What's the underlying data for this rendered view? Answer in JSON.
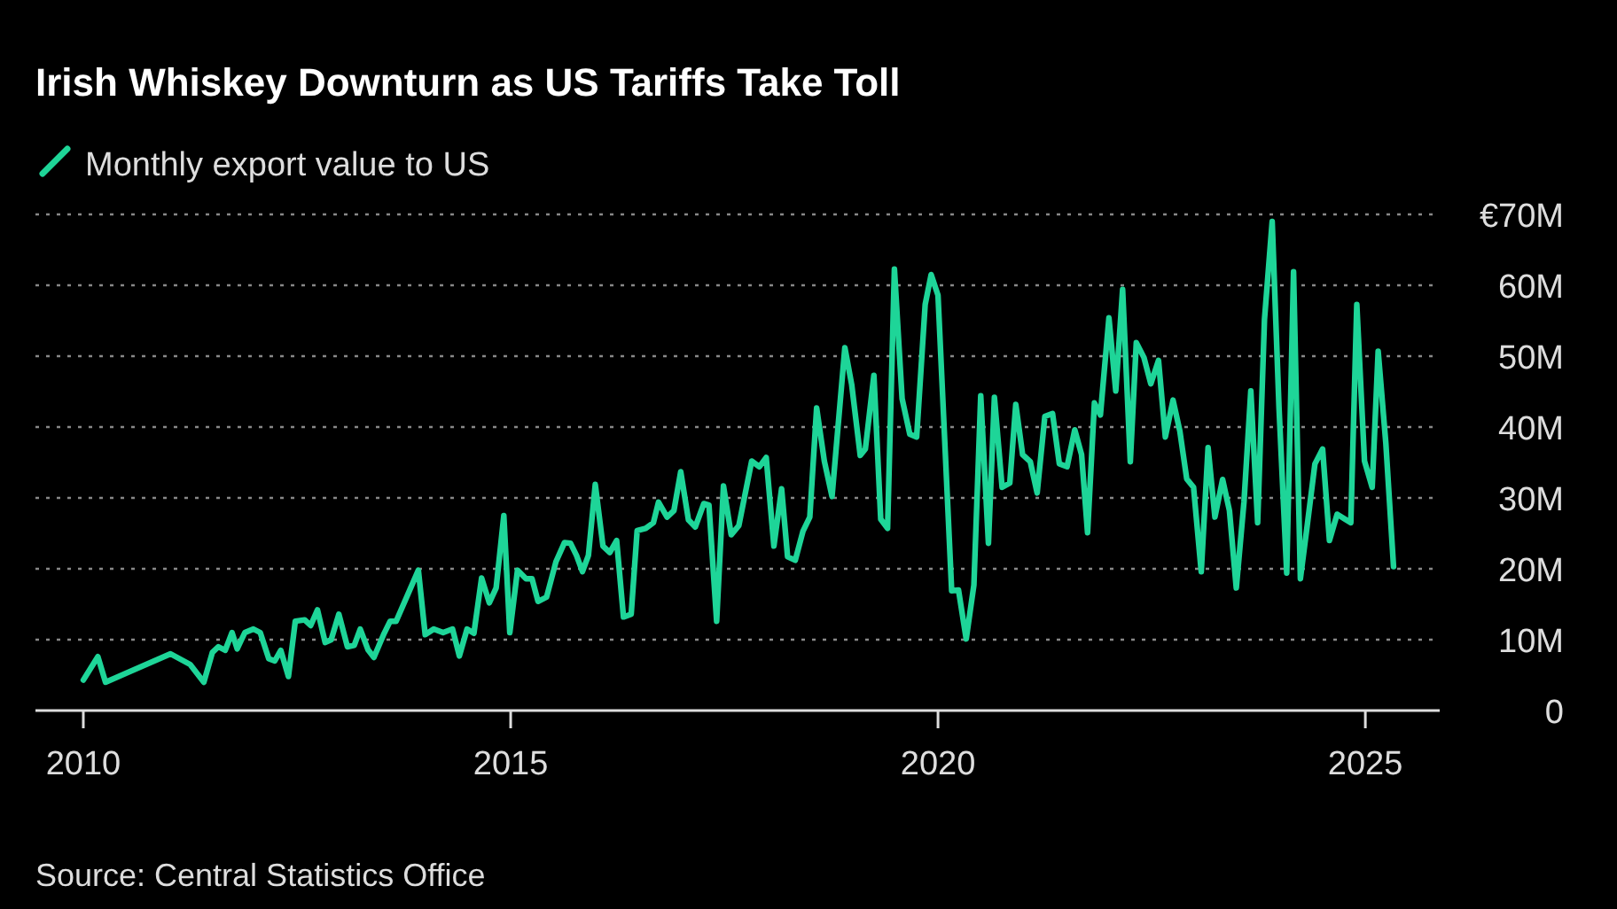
{
  "chart_data": {
    "type": "line",
    "title": "Irish Whiskey Downturn as US Tariffs Take Toll",
    "series": [
      {
        "name": "Monthly export value to US",
        "color": "#1ed598",
        "x": [
          2010.0,
          2010.17,
          2010.26,
          2011.02,
          2011.25,
          2011.41,
          2011.51,
          2011.58,
          2011.66,
          2011.74,
          2011.8,
          2011.89,
          2011.99,
          2012.07,
          2012.17,
          2012.24,
          2012.31,
          2012.4,
          2012.48,
          2012.59,
          2012.66,
          2012.74,
          2012.83,
          2012.9,
          2012.99,
          2013.09,
          2013.17,
          2013.24,
          2013.33,
          2013.4,
          2013.52,
          2013.59,
          2013.66,
          2013.92,
          2014.0,
          2014.1,
          2014.21,
          2014.32,
          2014.4,
          2014.49,
          2014.57,
          2014.66,
          2014.75,
          2014.83,
          2014.92,
          2014.99,
          2015.08,
          2015.18,
          2015.25,
          2015.32,
          2015.42,
          2015.53,
          2015.63,
          2015.7,
          2015.77,
          2015.84,
          2015.91,
          2015.99,
          2016.08,
          2016.16,
          2016.24,
          2016.32,
          2016.41,
          2016.48,
          2016.58,
          2016.67,
          2016.73,
          2016.83,
          2016.91,
          2016.99,
          2017.08,
          2017.16,
          2017.26,
          2017.32,
          2017.41,
          2017.49,
          2017.58,
          2017.67,
          2017.82,
          2017.91,
          2017.99,
          2018.08,
          2018.17,
          2018.24,
          2018.33,
          2018.42,
          2018.5,
          2018.58,
          2018.67,
          2018.76,
          2018.91,
          2018.99,
          2019.09,
          2019.15,
          2019.25,
          2019.33,
          2019.41,
          2019.49,
          2019.58,
          2019.67,
          2019.75,
          2019.85,
          2019.92,
          2020.0,
          2020.16,
          2020.24,
          2020.33,
          2020.42,
          2020.5,
          2020.59,
          2020.66,
          2020.75,
          2020.84,
          2020.91,
          2020.99,
          2021.08,
          2021.16,
          2021.25,
          2021.34,
          2021.42,
          2021.51,
          2021.6,
          2021.68,
          2021.75,
          2021.83,
          2021.9,
          2022.0,
          2022.08,
          2022.16,
          2022.25,
          2022.32,
          2022.41,
          2022.49,
          2022.58,
          2022.66,
          2022.75,
          2022.83,
          2022.91,
          2022.99,
          2023.08,
          2023.16,
          2023.24,
          2023.33,
          2023.41,
          2023.49,
          2023.58,
          2023.66,
          2023.74,
          2023.82,
          2023.91,
          2023.99,
          2024.08,
          2024.16,
          2024.24,
          2024.32,
          2024.41,
          2024.5,
          2024.58,
          2024.67,
          2024.75,
          2024.83,
          2024.9,
          2024.99,
          2025.08,
          2025.15,
          2025.24,
          2025.33
        ],
        "values": [
          4.3,
          7.6,
          4,
          8,
          6.5,
          4,
          8.2,
          9,
          8.5,
          11,
          8.7,
          11,
          11.5,
          11,
          7.3,
          7,
          8.5,
          4.8,
          12.6,
          12.8,
          12,
          14.2,
          9.6,
          10,
          13.6,
          9,
          9.2,
          11.5,
          8.6,
          7.5,
          10.9,
          12.6,
          12.6,
          19.8,
          10.7,
          11.5,
          11,
          11.5,
          7.7,
          11.5,
          10.9,
          18.7,
          15.2,
          17.3,
          27.5,
          11,
          19.8,
          18.6,
          18.6,
          15.4,
          16,
          21,
          23.7,
          23.6,
          21.9,
          19.6,
          21.9,
          31.9,
          23.2,
          22.3,
          24,
          13.2,
          13.6,
          25.4,
          25.7,
          26.5,
          29.4,
          27.3,
          28.2,
          33.7,
          26.9,
          25.9,
          29.2,
          29,
          12.6,
          31.7,
          24.8,
          26.1,
          35.2,
          34.4,
          35.7,
          23.2,
          31.3,
          21.7,
          21.2,
          25.3,
          27.3,
          42.7,
          35.2,
          30.2,
          51.2,
          46,
          36,
          36.9,
          47.3,
          27,
          25.7,
          62.3,
          44,
          39,
          38.6,
          57.3,
          61.5,
          58.6,
          16.9,
          17,
          10.1,
          17.7,
          44.4,
          23.6,
          44.2,
          31.5,
          32.1,
          43.2,
          36.1,
          35.1,
          30.7,
          41.5,
          41.9,
          34.8,
          34.4,
          39.6,
          36.1,
          25.1,
          43.4,
          41.7,
          55.4,
          45.1,
          59.4,
          35.1,
          51.9,
          49.8,
          46.1,
          49.4,
          38.6,
          43.8,
          39.4,
          32.7,
          31.5,
          19.6,
          37.1,
          27.3,
          32.6,
          28.2,
          17.3,
          29.4,
          45.1,
          26.5,
          55.2,
          69,
          42.7,
          19.4,
          61.9,
          18.6,
          26.1,
          34.8,
          36.9,
          24,
          27.7,
          27.1,
          26.5,
          57.3,
          35.2,
          31.5,
          50.7,
          37.7,
          20.3
        ]
      }
    ],
    "xlim": [
      2009.44,
      2025.87
    ],
    "xticks": [
      2010,
      2015,
      2020,
      2025
    ],
    "ylim": [
      0,
      70
    ],
    "yticks": [
      0,
      {
        "value": 10,
        "label": "10M"
      },
      {
        "value": 20,
        "label": "20M"
      },
      {
        "value": 30,
        "label": "30M"
      },
      {
        "value": 40,
        "label": "40M"
      },
      {
        "value": 50,
        "label": "50M"
      },
      {
        "value": 60,
        "label": "60M"
      },
      {
        "value": 70,
        "label": "€70M"
      }
    ],
    "grid": "y",
    "legend": "top left",
    "line_style": "solid",
    "marker": "none",
    "annotations": [
      "Source: Central Statistics Office"
    ]
  }
}
